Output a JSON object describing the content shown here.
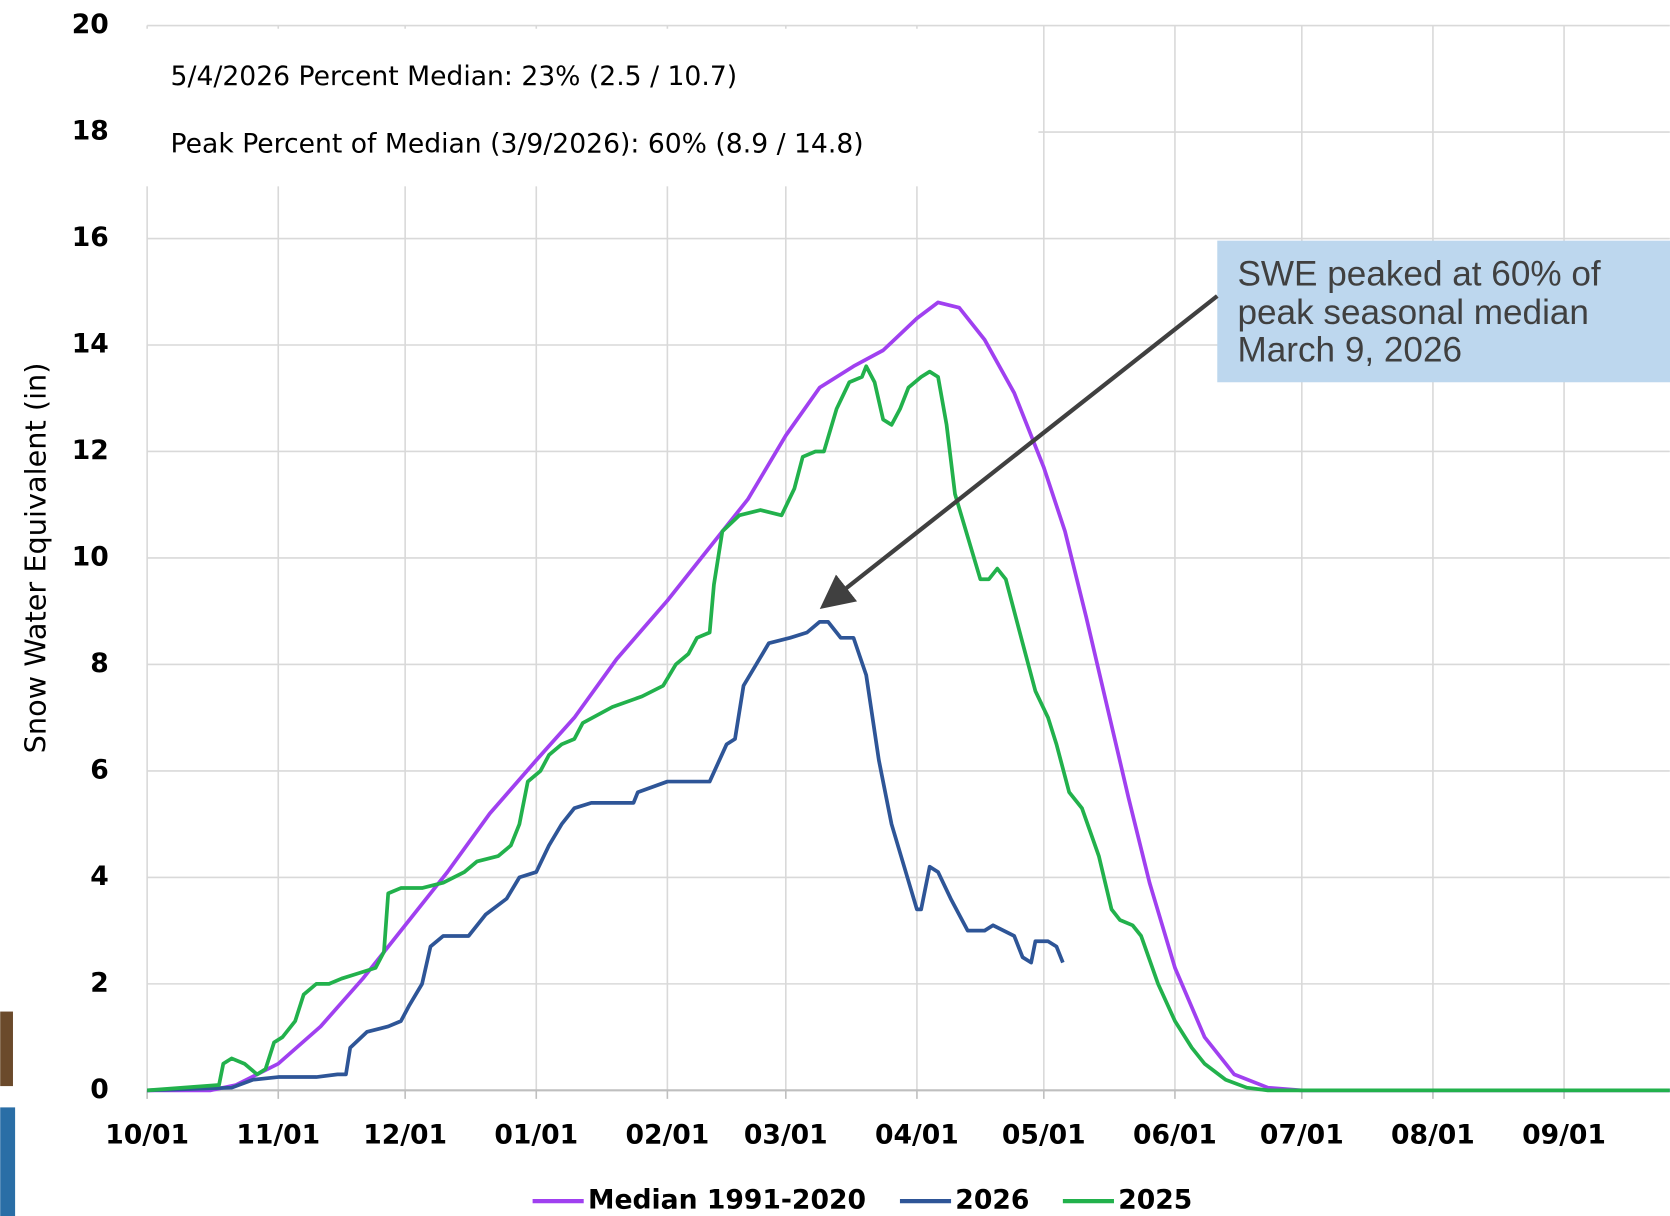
{
  "chart_data": {
    "type": "line",
    "y_label": "Snow Water Equivalent (in)",
    "notes": [
      "5/4/2026 Percent Median: 23% (2.5 / 10.7)",
      "Peak Percent of Median (3/9/2026): 60% (8.9 / 14.8)"
    ],
    "annotation": [
      "SWE peaked at 60% of",
      "peak seasonal median",
      "March 9, 2026"
    ],
    "xlim": [
      0,
      360
    ],
    "ylim": [
      0,
      20
    ],
    "xticks": [
      {
        "value": 0,
        "label": "10/01"
      },
      {
        "value": 31,
        "label": "11/01"
      },
      {
        "value": 61,
        "label": "12/01"
      },
      {
        "value": 92,
        "label": "01/01"
      },
      {
        "value": 123,
        "label": "02/01"
      },
      {
        "value": 151,
        "label": "03/01"
      },
      {
        "value": 182,
        "label": "04/01"
      },
      {
        "value": 212,
        "label": "05/01"
      },
      {
        "value": 243,
        "label": "06/01"
      },
      {
        "value": 273,
        "label": "07/01"
      },
      {
        "value": 304,
        "label": "08/01"
      },
      {
        "value": 335,
        "label": "09/01"
      }
    ],
    "yticks": [
      0,
      2,
      4,
      6,
      8,
      10,
      12,
      14,
      16,
      18,
      20
    ],
    "grid": true,
    "series": [
      {
        "name": "Median 1991-2020",
        "color": "#a040f0",
        "x": [
          0,
          15,
          21,
          31,
          41,
          51,
          61,
          71,
          81,
          92,
          101,
          111,
          123,
          131,
          142,
          151,
          159,
          167,
          174,
          182,
          187,
          192,
          198,
          205,
          212,
          217,
          222,
          227,
          232,
          237,
          243,
          250,
          257,
          265,
          273,
          360
        ],
        "values": [
          0,
          0,
          0.1,
          0.5,
          1.2,
          2.1,
          3.1,
          4.1,
          5.2,
          6.2,
          7.0,
          8.1,
          9.2,
          10.0,
          11.1,
          12.3,
          13.2,
          13.6,
          13.9,
          14.5,
          14.8,
          14.7,
          14.1,
          13.1,
          11.7,
          10.5,
          8.9,
          7.2,
          5.5,
          3.9,
          2.3,
          1.0,
          0.3,
          0.05,
          0,
          0
        ]
      },
      {
        "name": "2026",
        "color": "#2e5597",
        "x": [
          0,
          20,
          25,
          31,
          40,
          45,
          47,
          48,
          52,
          57,
          60,
          62,
          65,
          67,
          70,
          76,
          80,
          85,
          88,
          92,
          95,
          98,
          101,
          105,
          115,
          116,
          123,
          133,
          137,
          139,
          141,
          144,
          147,
          152,
          156,
          159,
          161,
          164,
          167,
          170,
          173,
          176,
          179,
          182,
          183,
          185,
          187,
          190,
          194,
          198,
          200,
          205,
          207,
          209,
          210,
          213,
          215,
          216.5
        ],
        "values": [
          0,
          0.05,
          0.2,
          0.25,
          0.25,
          0.3,
          0.3,
          0.8,
          1.1,
          1.2,
          1.3,
          1.6,
          2.0,
          2.7,
          2.9,
          2.9,
          3.3,
          3.6,
          4.0,
          4.1,
          4.6,
          5.0,
          5.3,
          5.4,
          5.4,
          5.6,
          5.8,
          5.8,
          6.5,
          6.6,
          7.6,
          8.0,
          8.4,
          8.5,
          8.6,
          8.8,
          8.8,
          8.5,
          8.5,
          7.8,
          6.2,
          5.0,
          4.2,
          3.4,
          3.4,
          4.2,
          4.1,
          3.6,
          3.0,
          3.0,
          3.1,
          2.9,
          2.5,
          2.4,
          2.8,
          2.8,
          2.7,
          2.4
        ]
      },
      {
        "name": "2025",
        "color": "#22b14c",
        "x": [
          0,
          17,
          18,
          20,
          23,
          26,
          28,
          30,
          32,
          35,
          37,
          40,
          43,
          46,
          50,
          54,
          56,
          57,
          60,
          65,
          70,
          75,
          78,
          83,
          86,
          88,
          90,
          93,
          95,
          98,
          101,
          103,
          110,
          117,
          122,
          125,
          128,
          130,
          133,
          134,
          136,
          140,
          145,
          150,
          153,
          155,
          158,
          160,
          163,
          166,
          169,
          170,
          172,
          174,
          176,
          178,
          180,
          183,
          185,
          187,
          189,
          191,
          194,
          197,
          199,
          201,
          203,
          207,
          210,
          213,
          215,
          218,
          221,
          225,
          228,
          230,
          233,
          235,
          239,
          243,
          247,
          250,
          255,
          260,
          265,
          360
        ],
        "values": [
          0,
          0.1,
          0.5,
          0.6,
          0.5,
          0.3,
          0.4,
          0.9,
          1.0,
          1.3,
          1.8,
          2.0,
          2.0,
          2.1,
          2.2,
          2.3,
          2.6,
          3.7,
          3.8,
          3.8,
          3.9,
          4.1,
          4.3,
          4.4,
          4.6,
          5.0,
          5.8,
          6.0,
          6.3,
          6.5,
          6.6,
          6.9,
          7.2,
          7.4,
          7.6,
          8.0,
          8.2,
          8.5,
          8.6,
          9.5,
          10.5,
          10.8,
          10.9,
          10.8,
          11.3,
          11.9,
          12.0,
          12.0,
          12.8,
          13.3,
          13.4,
          13.6,
          13.3,
          12.6,
          12.5,
          12.8,
          13.2,
          13.4,
          13.5,
          13.4,
          12.5,
          11.2,
          10.4,
          9.6,
          9.6,
          9.8,
          9.6,
          8.4,
          7.5,
          7.0,
          6.5,
          5.6,
          5.3,
          4.4,
          3.4,
          3.2,
          3.1,
          2.9,
          2.0,
          1.3,
          0.8,
          0.5,
          0.2,
          0.05,
          0,
          0
        ]
      }
    ]
  }
}
